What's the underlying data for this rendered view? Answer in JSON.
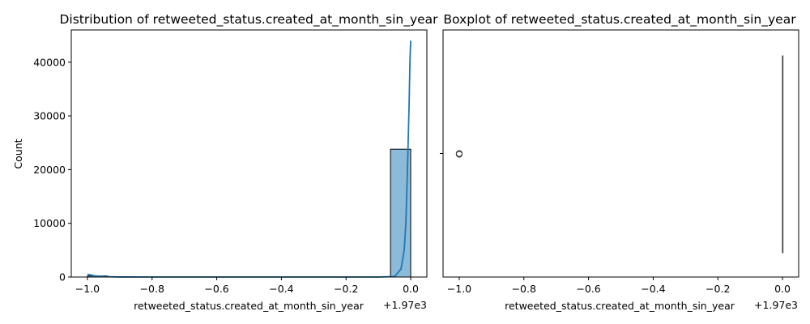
{
  "chart_data": [
    {
      "type": "histogram",
      "title": "Distribution of retweeted_status.created_at_month_sin_year",
      "xlabel": "retweeted_status.created_at_month_sin_year",
      "ylabel": "Count",
      "x_offset_label": "+1.97e3",
      "xlim": [
        -1.05,
        0.05
      ],
      "ylim": [
        0,
        46000
      ],
      "x_ticks": [
        -1.0,
        -0.8,
        -0.6,
        -0.4,
        -0.2,
        0.0
      ],
      "x_tick_labels": [
        "−1.0",
        "−0.8",
        "−0.6",
        "−0.4",
        "−0.2",
        "0.0"
      ],
      "y_ticks": [
        0,
        10000,
        20000,
        30000,
        40000
      ],
      "y_tick_labels": [
        "0",
        "10000",
        "20000",
        "30000",
        "40000"
      ],
      "bins": [
        {
          "x0": -1.0,
          "x1": -0.9375,
          "count": 200
        },
        {
          "x0": -0.0625,
          "x1": 0.0,
          "count": 23800
        }
      ],
      "bar_color": "#7fb2d5",
      "kde": {
        "color": "#1f77b4",
        "points": [
          [
            -1.0,
            500
          ],
          [
            -0.98,
            250
          ],
          [
            -0.95,
            80
          ],
          [
            -0.9,
            10
          ],
          [
            -0.8,
            0
          ],
          [
            -0.2,
            0
          ],
          [
            -0.1,
            0
          ],
          [
            -0.05,
            100
          ],
          [
            -0.03,
            1500
          ],
          [
            -0.02,
            5000
          ],
          [
            -0.015,
            10000
          ],
          [
            -0.01,
            20000
          ],
          [
            -0.005,
            32000
          ],
          [
            -0.002,
            41000
          ],
          [
            0.0,
            44000
          ]
        ]
      }
    },
    {
      "type": "boxplot",
      "title": "Boxplot of retweeted_status.created_at_month_sin_year",
      "xlabel": "retweeted_status.created_at_month_sin_year",
      "x_offset_label": "+1.97e3",
      "xlim": [
        -1.05,
        0.05
      ],
      "x_ticks": [
        -1.0,
        -0.8,
        -0.6,
        -0.4,
        -0.2,
        0.0
      ],
      "x_tick_labels": [
        "−1.0",
        "−0.8",
        "−0.6",
        "−0.4",
        "−0.2",
        "0.0"
      ],
      "box": {
        "q1": 0.0,
        "median": 0.0,
        "q3": 0.0,
        "whisker_low": 0.0,
        "whisker_high": 0.0
      },
      "outliers": [
        -1.0
      ],
      "box_color": "#4c72b0"
    }
  ]
}
